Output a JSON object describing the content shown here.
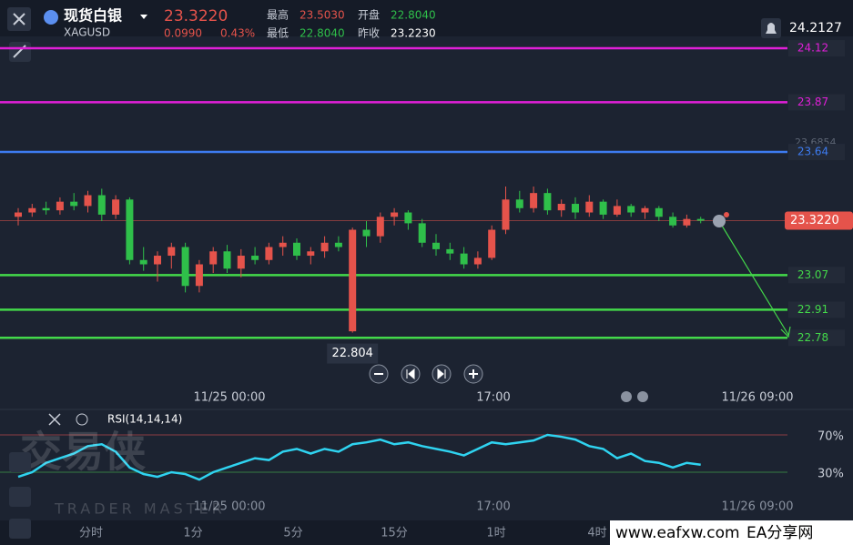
{
  "header": {
    "symbol_name": "现货白银",
    "symbol_code": "XAGUSD",
    "price": "23.3220",
    "change": "0.0990",
    "change_pct": "0.43%",
    "high_label": "最高",
    "high": "23.5030",
    "open_label": "开盘",
    "open": "22.8040",
    "low_label": "最低",
    "low": "22.8040",
    "prev_label": "昨收",
    "prev": "23.2230",
    "top_right": "24.2127"
  },
  "chart_data": [
    {
      "type": "candlestick",
      "ylim": [
        22.68,
        24.175
      ],
      "up_color": "#e5534b",
      "down_color": "#2fbf4a",
      "open": [
        23.34,
        23.36,
        23.38,
        23.37,
        23.41,
        23.39,
        23.44,
        23.35,
        23.42,
        23.14,
        23.12,
        23.16,
        23.2,
        23.02,
        23.12,
        23.18,
        23.1,
        23.16,
        23.14,
        23.2,
        23.22,
        23.16,
        23.18,
        23.22,
        22.81,
        23.28,
        23.25,
        23.34,
        23.36,
        23.31,
        23.22,
        23.19,
        23.17,
        23.12,
        23.15,
        23.28,
        23.42,
        23.38,
        23.45,
        23.37,
        23.4,
        23.36,
        23.41,
        23.35,
        23.39,
        23.36,
        23.38,
        23.34,
        23.3,
        23.33
      ],
      "high": [
        23.38,
        23.4,
        23.41,
        23.43,
        23.45,
        23.46,
        23.47,
        23.44,
        23.43,
        23.2,
        23.18,
        23.22,
        23.22,
        23.14,
        23.2,
        23.21,
        23.19,
        23.2,
        23.22,
        23.25,
        23.24,
        23.2,
        23.25,
        23.25,
        23.29,
        23.32,
        23.36,
        23.38,
        23.37,
        23.33,
        23.26,
        23.22,
        23.2,
        23.18,
        23.3,
        23.48,
        23.46,
        23.48,
        23.47,
        23.42,
        23.43,
        23.44,
        23.42,
        23.42,
        23.4,
        23.39,
        23.39,
        23.36,
        23.35,
        23.34
      ],
      "low": [
        23.3,
        23.34,
        23.35,
        23.35,
        23.37,
        23.36,
        23.32,
        23.33,
        23.12,
        23.09,
        23.04,
        23.1,
        22.99,
        22.99,
        23.08,
        23.08,
        23.06,
        23.12,
        23.12,
        23.16,
        23.14,
        23.12,
        23.15,
        23.18,
        22.804,
        23.2,
        23.22,
        23.3,
        23.28,
        23.2,
        23.16,
        23.14,
        23.1,
        23.1,
        23.14,
        23.26,
        23.36,
        23.36,
        23.35,
        23.34,
        23.33,
        23.34,
        23.33,
        23.34,
        23.34,
        23.33,
        23.32,
        23.29,
        23.29,
        23.31
      ],
      "close": [
        23.36,
        23.38,
        23.37,
        23.41,
        23.39,
        23.44,
        23.35,
        23.42,
        23.14,
        23.12,
        23.16,
        23.2,
        23.02,
        23.12,
        23.18,
        23.1,
        23.16,
        23.14,
        23.2,
        23.22,
        23.16,
        23.18,
        23.22,
        23.2,
        23.28,
        23.25,
        23.34,
        23.36,
        23.31,
        23.22,
        23.19,
        23.17,
        23.12,
        23.15,
        23.28,
        23.42,
        23.38,
        23.45,
        23.37,
        23.4,
        23.36,
        23.41,
        23.35,
        23.39,
        23.36,
        23.38,
        23.34,
        23.3,
        23.33,
        23.322
      ],
      "levels": [
        {
          "value": 24.12,
          "color": "#e01fd8"
        },
        {
          "value": 23.87,
          "color": "#e01fd8"
        },
        {
          "value": 23.64,
          "color": "#3d7bf0"
        },
        {
          "value": 23.07,
          "color": "#43d94a"
        },
        {
          "value": 22.91,
          "color": "#43d94a"
        },
        {
          "value": 22.78,
          "color": "#43d94a"
        }
      ],
      "last_price": {
        "value": 23.322,
        "label": "23.3220"
      },
      "annotation": "22.804",
      "faint_label": "23.6854",
      "time_labels": [
        "11/25 00:00",
        "17:00",
        "11/26 09:00"
      ]
    },
    {
      "type": "line",
      "title": "RSI(14,14,14)",
      "color": "#2fd3f0",
      "ylim": [
        4.6,
        82.7
      ],
      "yticks": [
        {
          "value": 70,
          "label": "70%"
        },
        {
          "value": 30,
          "label": "30%"
        }
      ],
      "values": [
        25,
        30,
        40,
        45,
        50,
        58,
        60,
        52,
        35,
        28,
        25,
        30,
        28,
        22,
        30,
        35,
        40,
        45,
        43,
        52,
        55,
        50,
        55,
        52,
        60,
        62,
        65,
        60,
        62,
        58,
        55,
        52,
        48,
        55,
        62,
        60,
        62,
        64,
        70,
        68,
        65,
        58,
        55,
        45,
        50,
        42,
        40,
        35,
        40,
        38
      ]
    }
  ],
  "tabs": [
    "分时",
    "1分",
    "5分",
    "15分",
    "1时",
    "4时"
  ],
  "watermark": {
    "cn": "交易侠",
    "en": "TRADER MASTER",
    "site": "www.eafxw.com",
    "site_name": "EA分享网"
  }
}
